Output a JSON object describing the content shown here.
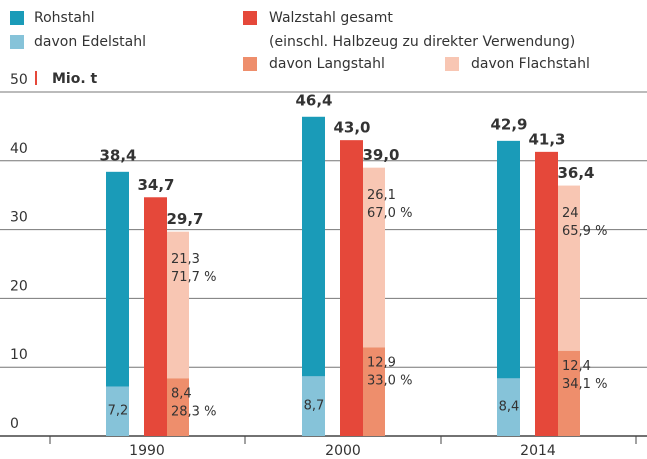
{
  "chart_data": {
    "type": "bar",
    "unit": "Mio. t",
    "categories": [
      "1990",
      "2000",
      "2014"
    ],
    "ylim": [
      0,
      50
    ],
    "yticks": [
      0,
      10,
      20,
      30,
      40,
      50
    ],
    "grid": true,
    "series": [
      {
        "name": "Rohstahl",
        "color": "#1a9bb8",
        "values": [
          38.4,
          46.4,
          42.9
        ],
        "value_labels": [
          "38,4",
          "46,4",
          "42,9"
        ]
      },
      {
        "name": "davon Edelstahl",
        "color": "#86c3d9",
        "values": [
          7.2,
          8.7,
          8.4
        ],
        "value_labels": [
          "7,2",
          "8,7",
          "8,4"
        ]
      },
      {
        "name": "Walzstahl gesamt",
        "note": "(einschl. Halbzeug zu direkter Verwendung)",
        "color": "#e5483a",
        "values": [
          34.7,
          43.0,
          41.3
        ],
        "value_labels": [
          "34,7",
          "43,0",
          "41,3"
        ]
      },
      {
        "name": "davon Langstahl",
        "color": "#ee8e6c",
        "values": [
          8.4,
          12.9,
          12.4
        ],
        "value_labels": [
          "8,4",
          "12,9",
          "12,4"
        ],
        "shares": [
          28.3,
          33.0,
          34.1
        ],
        "share_labels": [
          "28,3 %",
          "33,0 %",
          "34,1 %"
        ]
      },
      {
        "name": "davon Flachstahl",
        "color": "#f8c6b3",
        "values": [
          21.3,
          26.1,
          24
        ],
        "value_labels": [
          "21,3",
          "26,1",
          "24"
        ],
        "shares": [
          71.7,
          67.0,
          65.9
        ],
        "share_labels": [
          "71,7 %",
          "67,0 %",
          "65,9 %"
        ]
      }
    ],
    "stack_totals": [
      29.7,
      39.0,
      36.4
    ],
    "stack_total_labels": [
      "29,7",
      "39,0",
      "36,4"
    ]
  }
}
